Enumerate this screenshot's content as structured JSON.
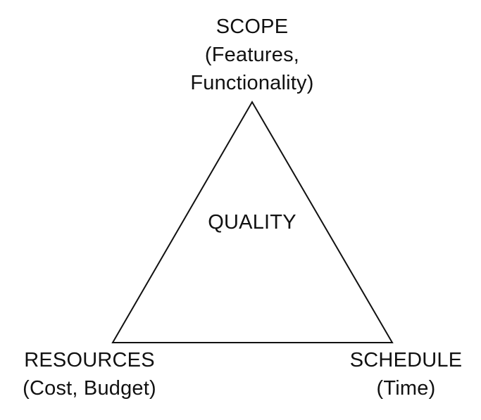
{
  "diagram": {
    "top": {
      "title": "SCOPE",
      "line2": "(Features,",
      "line3": "Functionality)"
    },
    "center": {
      "title": "QUALITY"
    },
    "bottom_left": {
      "title": "RESOURCES",
      "subtitle": "(Cost, Budget)"
    },
    "bottom_right": {
      "title": "SCHEDULE",
      "subtitle": "(Time)"
    }
  }
}
